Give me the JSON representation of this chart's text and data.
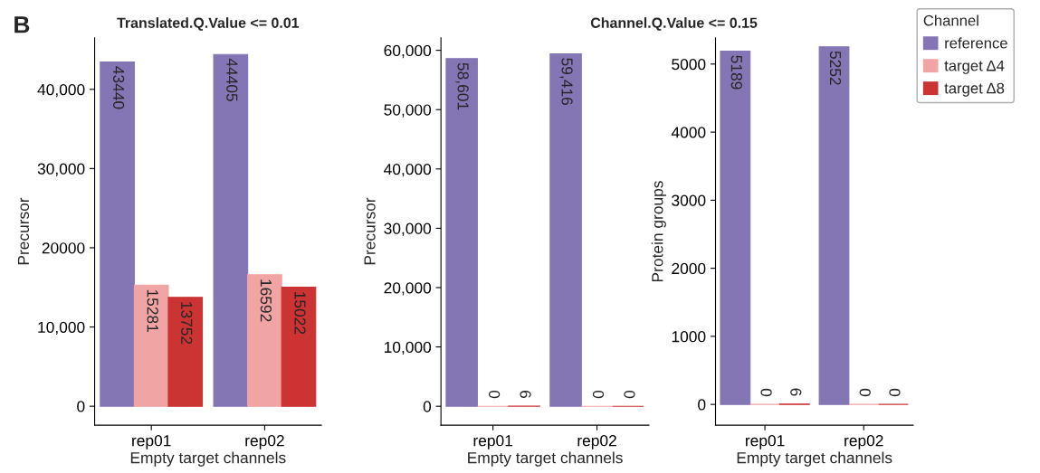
{
  "chart_data": [
    {
      "type": "bar",
      "title": "Translated.Q.Value <= 0.01",
      "xlabel": "Empty target channels",
      "ylabel": "Precursor",
      "annotations": [
        "B"
      ],
      "categories": [
        "rep01",
        "rep02"
      ],
      "series": [
        {
          "color": "#8476b5",
          "values": [
            43440,
            44405
          ]
        },
        {
          "color": "#f0a4a4",
          "values": [
            15281,
            16592
          ]
        },
        {
          "color": "#cc3333",
          "values": [
            13752,
            15022
          ]
        }
      ],
      "ylim": [
        -2400,
        46500
      ],
      "yticks": [
        0,
        {
          "value": 10000,
          "label": "10,000"
        },
        20000,
        {
          "value": 30000,
          "label": "30,000"
        },
        {
          "value": 40000,
          "label": "40,000"
        }
      ],
      "data_labels": true,
      "grid": false,
      "legend": false
    },
    {
      "type": "bar",
      "title": "Channel.Q.Value <= 0.15",
      "xlabel": "Empty target channels",
      "ylabel": "Precursor",
      "categories": [
        "rep01",
        "rep02"
      ],
      "series": [
        {
          "color": "#8476b5",
          "values": [
            58601,
            59416
          ],
          "value_labels": [
            "58,601",
            "59,416"
          ]
        },
        {
          "color": "#f0a4a4",
          "values": [
            0,
            0
          ],
          "value_labels": [
            "0",
            "0"
          ]
        },
        {
          "color": "#cc3333",
          "values": [
            6,
            0
          ],
          "value_labels": [
            "6",
            "0"
          ]
        }
      ],
      "ylim": [
        -3200,
        62100
      ],
      "yticks": [
        0,
        {
          "value": 10000,
          "label": "10,000"
        },
        {
          "value": 20000,
          "label": "20,000"
        },
        {
          "value": 30000,
          "label": "30,000"
        },
        {
          "value": 40000,
          "label": "40,000"
        },
        {
          "value": 50000,
          "label": "50,000"
        },
        {
          "value": 60000,
          "label": "60,000"
        }
      ],
      "grid": false,
      "legend": false
    },
    {
      "type": "bar",
      "xlabel": "Empty target channels",
      "ylabel": "Protein groups",
      "legend_title": "Channel",
      "categories": [
        "rep01",
        "rep02"
      ],
      "series": [
        {
          "name": "reference",
          "color": "#8476b5",
          "values": [
            5189,
            5252
          ]
        },
        {
          "name": "target Δ4",
          "color": "#f0a4a4",
          "values": [
            0,
            0
          ]
        },
        {
          "name": "target Δ8",
          "color": "#cc3333",
          "values": [
            6,
            0
          ]
        }
      ],
      "ylim": [
        -306,
        5385
      ],
      "yticks": [
        0,
        1000,
        2000,
        3000,
        4000,
        5000
      ],
      "data_labels": true,
      "grid": false,
      "legend": "top right"
    }
  ]
}
